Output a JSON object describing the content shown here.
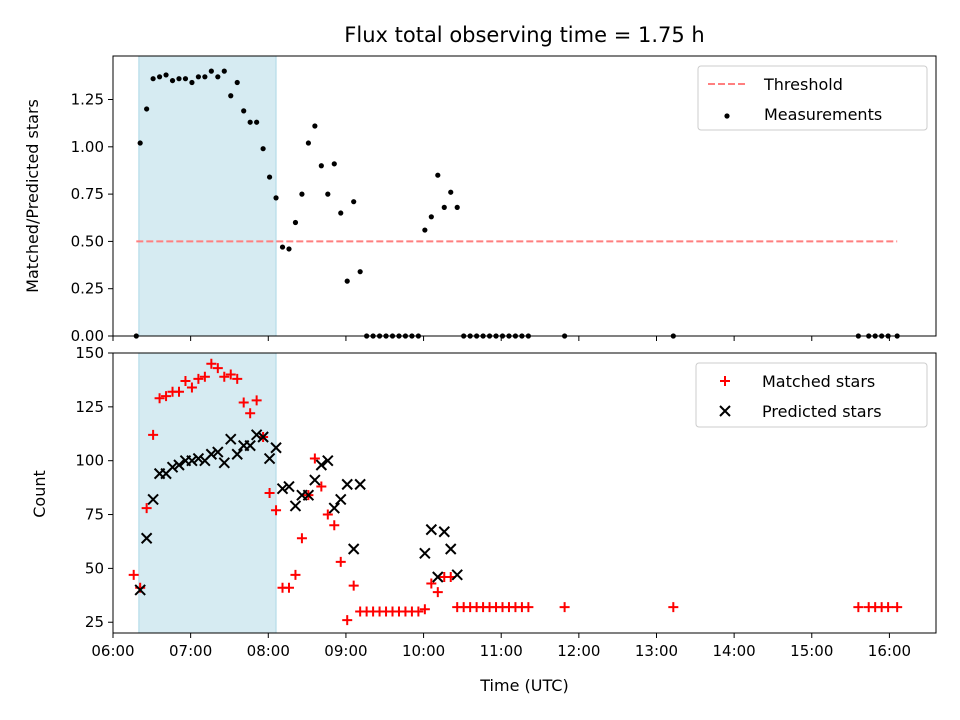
{
  "chart_data": {
    "title": "Flux total observing time = 1.75 h",
    "xlabel": "Time (UTC)",
    "xlim": [
      6.0,
      16.6
    ],
    "x_ticks": [
      "06:00",
      "07:00",
      "08:00",
      "09:00",
      "10:00",
      "11:00",
      "12:00",
      "13:00",
      "14:00",
      "15:00",
      "16:00"
    ],
    "highlight_span": [
      "06:20",
      "08:06"
    ],
    "panels": [
      {
        "type": "scatter",
        "ylabel": "Matched/Predicted stars",
        "ylim": [
          0,
          1.48
        ],
        "y_ticks": [
          "0.00",
          "0.25",
          "0.50",
          "0.75",
          "1.00",
          "1.25"
        ],
        "legend": "top-right",
        "series": [
          {
            "name": "Measurements",
            "color": "#000000",
            "marker": "dot",
            "points": [
              [
                "06:18",
                0.0
              ],
              [
                "06:21",
                1.02
              ],
              [
                "06:26",
                1.2
              ],
              [
                "06:31",
                1.36
              ],
              [
                "06:36",
                1.37
              ],
              [
                "06:41",
                1.38
              ],
              [
                "06:46",
                1.35
              ],
              [
                "06:51",
                1.36
              ],
              [
                "06:56",
                1.36
              ],
              [
                "07:01",
                1.34
              ],
              [
                "07:06",
                1.37
              ],
              [
                "07:11",
                1.37
              ],
              [
                "07:16",
                1.4
              ],
              [
                "07:21",
                1.37
              ],
              [
                "07:26",
                1.4
              ],
              [
                "07:31",
                1.27
              ],
              [
                "07:36",
                1.34
              ],
              [
                "07:41",
                1.19
              ],
              [
                "07:46",
                1.13
              ],
              [
                "07:51",
                1.13
              ],
              [
                "07:56",
                0.99
              ],
              [
                "08:01",
                0.84
              ],
              [
                "08:06",
                0.73
              ],
              [
                "08:11",
                0.47
              ],
              [
                "08:16",
                0.46
              ],
              [
                "08:21",
                0.6
              ],
              [
                "08:26",
                0.75
              ],
              [
                "08:31",
                1.02
              ],
              [
                "08:36",
                1.11
              ],
              [
                "08:41",
                0.9
              ],
              [
                "08:46",
                0.75
              ],
              [
                "08:51",
                0.91
              ],
              [
                "08:56",
                0.65
              ],
              [
                "09:01",
                0.29
              ],
              [
                "09:06",
                0.71
              ],
              [
                "09:11",
                0.34
              ],
              [
                "09:16",
                0.0
              ],
              [
                "09:21",
                0.0
              ],
              [
                "09:26",
                0.0
              ],
              [
                "09:31",
                0.0
              ],
              [
                "09:36",
                0.0
              ],
              [
                "09:41",
                0.0
              ],
              [
                "09:46",
                0.0
              ],
              [
                "09:51",
                0.0
              ],
              [
                "09:56",
                0.0
              ],
              [
                "10:01",
                0.56
              ],
              [
                "10:06",
                0.63
              ],
              [
                "10:11",
                0.85
              ],
              [
                "10:16",
                0.68
              ],
              [
                "10:21",
                0.76
              ],
              [
                "10:26",
                0.68
              ],
              [
                "10:31",
                0.0
              ],
              [
                "10:36",
                0.0
              ],
              [
                "10:41",
                0.0
              ],
              [
                "10:46",
                0.0
              ],
              [
                "10:51",
                0.0
              ],
              [
                "10:56",
                0.0
              ],
              [
                "11:01",
                0.0
              ],
              [
                "11:06",
                0.0
              ],
              [
                "11:11",
                0.0
              ],
              [
                "11:16",
                0.0
              ],
              [
                "11:21",
                0.0
              ],
              [
                "11:49",
                0.0
              ],
              [
                "13:13",
                0.0
              ],
              [
                "15:36",
                0.0
              ],
              [
                "15:44",
                0.0
              ],
              [
                "15:49",
                0.0
              ],
              [
                "15:54",
                0.0
              ],
              [
                "15:59",
                0.0
              ],
              [
                "16:06",
                0.0
              ]
            ]
          },
          {
            "name": "Threshold",
            "color": "#ff7f7f",
            "style": "dashed",
            "points": [
              [
                "06:18",
                0.5
              ],
              [
                "16:06",
                0.5
              ]
            ]
          }
        ]
      },
      {
        "type": "scatter",
        "ylabel": "Count",
        "ylim": [
          20,
          150
        ],
        "y_ticks": [
          "25",
          "50",
          "75",
          "100",
          "125",
          "150"
        ],
        "legend": "top-right",
        "series": [
          {
            "name": "Matched stars",
            "color": "#ff0000",
            "marker": "plus",
            "points": [
              [
                "06:16",
                47
              ],
              [
                "06:21",
                41
              ],
              [
                "06:26",
                78
              ],
              [
                "06:31",
                112
              ],
              [
                "06:36",
                129
              ],
              [
                "06:41",
                130
              ],
              [
                "06:46",
                132
              ],
              [
                "06:51",
                132
              ],
              [
                "06:56",
                137
              ],
              [
                "07:01",
                134
              ],
              [
                "07:06",
                138
              ],
              [
                "07:11",
                139
              ],
              [
                "07:16",
                145
              ],
              [
                "07:21",
                143
              ],
              [
                "07:26",
                139
              ],
              [
                "07:31",
                140
              ],
              [
                "07:36",
                138
              ],
              [
                "07:41",
                127
              ],
              [
                "07:46",
                122
              ],
              [
                "07:51",
                128
              ],
              [
                "07:56",
                111
              ],
              [
                "08:01",
                85
              ],
              [
                "08:06",
                77
              ],
              [
                "08:11",
                41
              ],
              [
                "08:16",
                41
              ],
              [
                "08:21",
                47
              ],
              [
                "08:26",
                64
              ],
              [
                "08:31",
                84
              ],
              [
                "08:36",
                101
              ],
              [
                "08:41",
                88
              ],
              [
                "08:46",
                75
              ],
              [
                "08:51",
                70
              ],
              [
                "08:56",
                53
              ],
              [
                "09:01",
                26
              ],
              [
                "09:06",
                42
              ],
              [
                "09:11",
                30
              ],
              [
                "09:16",
                30
              ],
              [
                "09:21",
                30
              ],
              [
                "09:26",
                30
              ],
              [
                "09:31",
                30
              ],
              [
                "09:36",
                30
              ],
              [
                "09:41",
                30
              ],
              [
                "09:46",
                30
              ],
              [
                "09:51",
                30
              ],
              [
                "09:56",
                30
              ],
              [
                "10:01",
                31
              ],
              [
                "10:06",
                43
              ],
              [
                "10:11",
                39
              ],
              [
                "10:16",
                46
              ],
              [
                "10:21",
                46
              ],
              [
                "10:26",
                32
              ],
              [
                "10:31",
                32
              ],
              [
                "10:36",
                32
              ],
              [
                "10:41",
                32
              ],
              [
                "10:46",
                32
              ],
              [
                "10:51",
                32
              ],
              [
                "10:56",
                32
              ],
              [
                "11:01",
                32
              ],
              [
                "11:06",
                32
              ],
              [
                "11:11",
                32
              ],
              [
                "11:16",
                32
              ],
              [
                "11:21",
                32
              ],
              [
                "11:49",
                32
              ],
              [
                "13:13",
                32
              ],
              [
                "15:36",
                32
              ],
              [
                "15:44",
                32
              ],
              [
                "15:49",
                32
              ],
              [
                "15:54",
                32
              ],
              [
                "15:59",
                32
              ],
              [
                "16:06",
                32
              ]
            ]
          },
          {
            "name": "Predicted stars",
            "color": "#000000",
            "marker": "x",
            "points": [
              [
                "06:21",
                40
              ],
              [
                "06:26",
                64
              ],
              [
                "06:31",
                82
              ],
              [
                "06:36",
                94
              ],
              [
                "06:41",
                94
              ],
              [
                "06:46",
                97
              ],
              [
                "06:51",
                98
              ],
              [
                "06:56",
                100
              ],
              [
                "07:01",
                100
              ],
              [
                "07:06",
                101
              ],
              [
                "07:11",
                100
              ],
              [
                "07:16",
                103
              ],
              [
                "07:21",
                104
              ],
              [
                "07:26",
                99
              ],
              [
                "07:31",
                110
              ],
              [
                "07:36",
                103
              ],
              [
                "07:41",
                107
              ],
              [
                "07:46",
                107
              ],
              [
                "07:51",
                112
              ],
              [
                "07:56",
                111
              ],
              [
                "08:01",
                101
              ],
              [
                "08:06",
                106
              ],
              [
                "08:11",
                87
              ],
              [
                "08:16",
                88
              ],
              [
                "08:21",
                79
              ],
              [
                "08:26",
                84
              ],
              [
                "08:31",
                84
              ],
              [
                "08:36",
                91
              ],
              [
                "08:41",
                98
              ],
              [
                "08:46",
                100
              ],
              [
                "08:51",
                78
              ],
              [
                "08:56",
                82
              ],
              [
                "09:01",
                89
              ],
              [
                "09:06",
                59
              ],
              [
                "09:11",
                89
              ],
              [
                "10:01",
                57
              ],
              [
                "10:06",
                68
              ],
              [
                "10:11",
                46
              ],
              [
                "10:16",
                67
              ],
              [
                "10:21",
                59
              ],
              [
                "10:26",
                47
              ]
            ]
          }
        ]
      }
    ]
  }
}
